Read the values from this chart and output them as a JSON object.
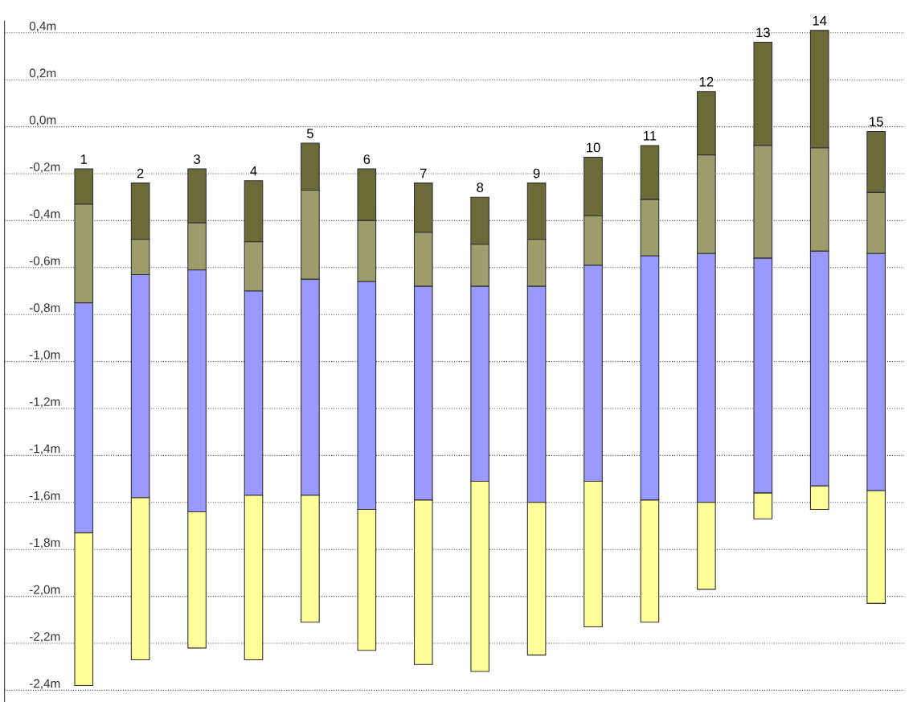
{
  "chart_data": {
    "type": "bar",
    "categories": [
      "1",
      "2",
      "3",
      "4",
      "5",
      "6",
      "7",
      "8",
      "9",
      "10",
      "11",
      "12",
      "13",
      "14",
      "15"
    ],
    "series": [
      {
        "color": "#6b6b3a",
        "base": [
          -0.18,
          -0.24,
          -0.18,
          -0.23,
          -0.07,
          -0.18,
          -0.24,
          -0.3,
          -0.24,
          -0.13,
          -0.08,
          0.15,
          0.36,
          0.41,
          -0.02
        ],
        "values": [
          -0.15,
          -0.24,
          -0.23,
          -0.26,
          -0.2,
          -0.22,
          -0.21,
          -0.2,
          -0.24,
          -0.25,
          -0.23,
          -0.27,
          -0.44,
          -0.5,
          -0.26
        ]
      },
      {
        "color": "#9c9c6c",
        "base": [
          -0.33,
          -0.48,
          -0.41,
          -0.49,
          -0.27,
          -0.4,
          -0.45,
          -0.5,
          -0.48,
          -0.38,
          -0.31,
          -0.12,
          -0.08,
          -0.09,
          -0.28
        ],
        "values": [
          -0.42,
          -0.15,
          -0.2,
          -0.21,
          -0.38,
          -0.26,
          -0.23,
          -0.18,
          -0.2,
          -0.21,
          -0.24,
          -0.42,
          -0.48,
          -0.44,
          -0.26
        ]
      },
      {
        "color": "#9999ff",
        "base": [
          -0.75,
          -0.63,
          -0.61,
          -0.7,
          -0.65,
          -0.66,
          -0.68,
          -0.68,
          -0.68,
          -0.59,
          -0.55,
          -0.54,
          -0.56,
          -0.53,
          -0.54
        ],
        "values": [
          -0.98,
          -0.95,
          -1.03,
          -0.87,
          -0.92,
          -0.97,
          -0.91,
          -0.83,
          -0.92,
          -0.92,
          -1.04,
          -1.06,
          -1.0,
          -1.0,
          -1.01
        ]
      },
      {
        "color": "#ffff99",
        "base": [
          -1.73,
          -1.58,
          -1.64,
          -1.57,
          -1.57,
          -1.63,
          -1.59,
          -1.51,
          -1.6,
          -1.51,
          -1.59,
          -1.6,
          -1.56,
          -1.53,
          -1.55
        ],
        "values": [
          -0.65,
          -0.69,
          -0.58,
          -0.7,
          -0.54,
          -0.6,
          -0.7,
          -0.81,
          -0.65,
          -0.62,
          -0.52,
          -0.37,
          -0.11,
          -0.1,
          -0.48
        ]
      }
    ],
    "ylim": [
      -2.45,
      0.45
    ],
    "yticks": [
      {
        "value": 0.4,
        "label": "0,4m"
      },
      {
        "value": 0.2,
        "label": "0,2m"
      },
      {
        "value": 0.0,
        "label": "0,0m"
      },
      {
        "value": -0.2,
        "label": "-0,2m"
      },
      {
        "value": -0.4,
        "label": "-0,4m"
      },
      {
        "value": -0.6,
        "label": "-0,6m"
      },
      {
        "value": -0.8,
        "label": "-0,8m"
      },
      {
        "value": -1.0,
        "label": "-1,0m"
      },
      {
        "value": -1.2,
        "label": "-1,2m"
      },
      {
        "value": -1.4,
        "label": "-1,4m"
      },
      {
        "value": -1.6,
        "label": "-1,6m"
      },
      {
        "value": -1.8,
        "label": "-1,8m"
      },
      {
        "value": -2.0,
        "label": "-2,0m"
      },
      {
        "value": -2.2,
        "label": "-2,2m"
      },
      {
        "value": -2.4,
        "label": "-2,4m"
      }
    ],
    "grid": "y"
  }
}
